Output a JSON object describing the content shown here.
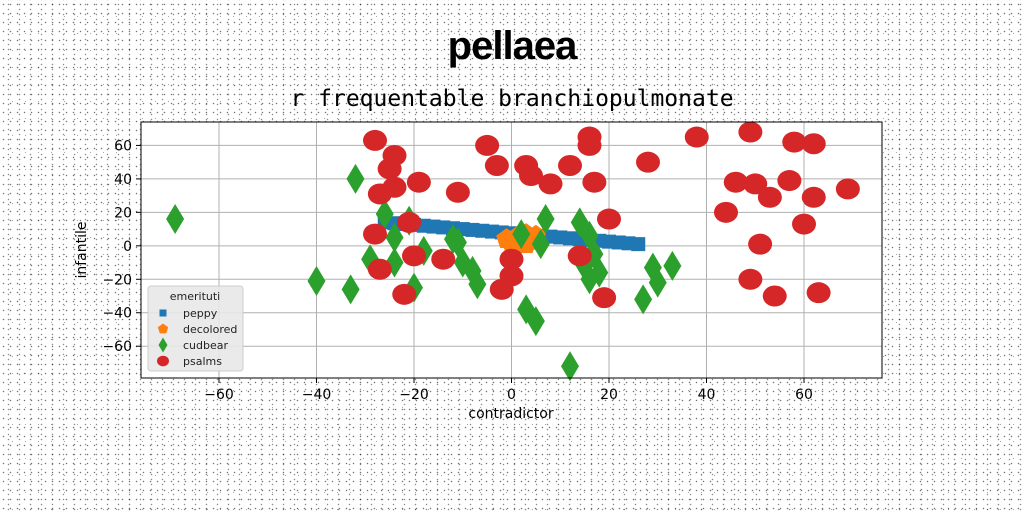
{
  "chart_data": {
    "type": "scatter",
    "title": "pellaea",
    "subtitle": "r frequentable branchiopulmonate",
    "xlabel": "contradictor",
    "ylabel": "infantile",
    "xlim": [
      -76,
      76
    ],
    "ylim": [
      -79,
      74
    ],
    "xticks": [
      -60,
      -40,
      -20,
      0,
      20,
      40,
      60
    ],
    "yticks": [
      -60,
      -40,
      -20,
      0,
      20,
      40,
      60
    ],
    "xtick_labels": [
      "−60",
      "−40",
      "−20",
      "0",
      "20",
      "40",
      "60"
    ],
    "ytick_labels": [
      "−60",
      "−40",
      "−20",
      "0",
      "20",
      "40",
      "60"
    ],
    "grid": true,
    "legend": {
      "title": "emerituti",
      "position": "lower-left"
    },
    "series": [
      {
        "name": "peppy",
        "marker": "square",
        "color": "#1f77b4",
        "points": [
          [
            -26,
            14
          ],
          [
            -24,
            13.5
          ],
          [
            -22,
            13
          ],
          [
            -20,
            12.5
          ],
          [
            -18,
            12
          ],
          [
            -16,
            11.5
          ],
          [
            -14,
            11
          ],
          [
            -12,
            10.5
          ],
          [
            -10,
            10
          ],
          [
            -8,
            9.5
          ],
          [
            -6,
            9
          ],
          [
            -4,
            8.5
          ],
          [
            -2,
            8
          ],
          [
            0,
            7.5
          ],
          [
            2,
            7
          ],
          [
            4,
            6.5
          ],
          [
            6,
            6
          ],
          [
            8,
            5.5
          ],
          [
            10,
            5
          ],
          [
            12,
            4.5
          ],
          [
            14,
            4
          ],
          [
            16,
            3.5
          ],
          [
            18,
            3
          ],
          [
            20,
            2.5
          ],
          [
            22,
            2
          ],
          [
            24,
            1.5
          ],
          [
            26,
            1
          ]
        ]
      },
      {
        "name": "decolored",
        "marker": "pentagon",
        "color": "#ff7f0e",
        "points": [
          [
            -1,
            4
          ],
          [
            0,
            2
          ],
          [
            1,
            5
          ],
          [
            2,
            3
          ],
          [
            3,
            1
          ],
          [
            4,
            4
          ],
          [
            5,
            6
          ],
          [
            3,
            7
          ],
          [
            1,
            2
          ],
          [
            5,
            3
          ]
        ]
      },
      {
        "name": "cudbear",
        "marker": "diamond",
        "color": "#2ca02c",
        "points": [
          [
            -69,
            16
          ],
          [
            -32,
            40
          ],
          [
            -26,
            19
          ],
          [
            -29,
            -8
          ],
          [
            -24,
            5
          ],
          [
            -24,
            -10
          ],
          [
            -21,
            15
          ],
          [
            -20,
            -25
          ],
          [
            -18,
            -3
          ],
          [
            -12,
            4
          ],
          [
            -11,
            2
          ],
          [
            -10,
            -10
          ],
          [
            -8,
            -15
          ],
          [
            -7,
            -23
          ],
          [
            -40,
            -21
          ],
          [
            -33,
            -26
          ],
          [
            3,
            -38
          ],
          [
            5,
            -45
          ],
          [
            12,
            -72
          ],
          [
            2,
            7
          ],
          [
            6,
            1
          ],
          [
            7,
            16
          ],
          [
            14,
            14
          ],
          [
            16,
            6
          ],
          [
            17,
            -5
          ],
          [
            15,
            -12
          ],
          [
            16,
            -20
          ],
          [
            18,
            -16
          ],
          [
            27,
            -32
          ],
          [
            29,
            -13
          ],
          [
            30,
            -22
          ],
          [
            33,
            -12
          ]
        ]
      },
      {
        "name": "psalms",
        "marker": "circle",
        "color": "#d62728",
        "points": [
          [
            -28,
            63
          ],
          [
            -24,
            54
          ],
          [
            -25,
            46
          ],
          [
            -24,
            35
          ],
          [
            -27,
            31
          ],
          [
            -19,
            38
          ],
          [
            -28,
            7
          ],
          [
            -21,
            14
          ],
          [
            -20,
            -6
          ],
          [
            -27,
            -14
          ],
          [
            -22,
            -29
          ],
          [
            -14,
            -8
          ],
          [
            -11,
            32
          ],
          [
            -5,
            60
          ],
          [
            -3,
            48
          ],
          [
            3,
            48
          ],
          [
            4,
            42
          ],
          [
            8,
            37
          ],
          [
            12,
            48
          ],
          [
            16,
            60
          ],
          [
            16,
            65
          ],
          [
            17,
            38
          ],
          [
            20,
            16
          ],
          [
            14,
            -6
          ],
          [
            19,
            -31
          ],
          [
            28,
            50
          ],
          [
            38,
            65
          ],
          [
            44,
            20
          ],
          [
            46,
            38
          ],
          [
            49,
            68
          ],
          [
            50,
            37
          ],
          [
            51,
            1
          ],
          [
            53,
            29
          ],
          [
            49,
            -20
          ],
          [
            54,
            -30
          ],
          [
            57,
            39
          ],
          [
            58,
            62
          ],
          [
            60,
            13
          ],
          [
            62,
            29
          ],
          [
            62,
            61
          ],
          [
            63,
            -28
          ],
          [
            69,
            34
          ],
          [
            0,
            -8
          ],
          [
            -2,
            -26
          ],
          [
            0,
            -18
          ]
        ]
      }
    ]
  }
}
